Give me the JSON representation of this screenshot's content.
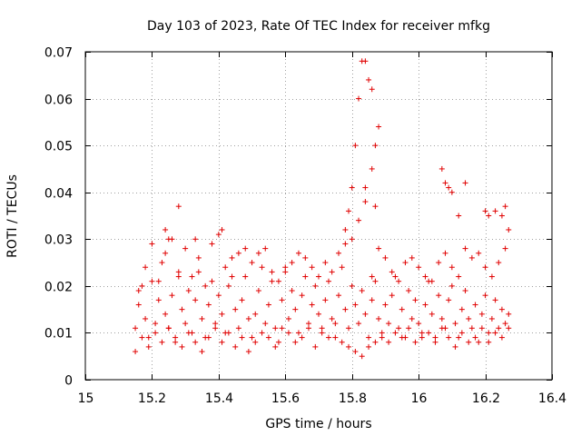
{
  "chart_data": {
    "type": "scatter",
    "title": "Day 103 of 2023, Rate Of TEC Index for receiver mfkg",
    "xlabel": "GPS time / hours",
    "ylabel": "ROTI / TECUs",
    "xlim": [
      15,
      16.4
    ],
    "ylim": [
      0,
      0.07
    ],
    "xticks": [
      15,
      15.2,
      15.4,
      15.6,
      15.8,
      16,
      16.2,
      16.4
    ],
    "xtick_labels": [
      "15",
      "15.2",
      "15.4",
      "15.6",
      "15.8",
      "16",
      "16.2",
      "16.4"
    ],
    "yticks": [
      0,
      0.01,
      0.02,
      0.03,
      0.04,
      0.05,
      0.06,
      0.07
    ],
    "ytick_labels": [
      "0",
      "0.01",
      "0.02",
      "0.03",
      "0.04",
      "0.05",
      "0.06",
      "0.07"
    ],
    "grid": true,
    "marker_color": "#e00000",
    "series": [
      {
        "x": [
          15.15,
          15.16,
          15.17,
          15.18,
          15.19,
          15.2,
          15.21,
          15.22,
          15.23,
          15.24,
          15.25,
          15.26,
          15.27,
          15.28,
          15.29,
          15.3,
          15.31,
          15.32,
          15.33,
          15.34,
          15.35,
          15.36,
          15.37,
          15.38,
          15.39,
          15.4,
          15.41,
          15.42,
          15.43,
          15.44,
          15.45,
          15.46,
          15.47,
          15.48,
          15.49,
          15.5,
          15.51,
          15.52,
          15.53,
          15.54,
          15.55,
          15.56,
          15.57,
          15.58,
          15.59,
          15.6,
          15.61,
          15.62,
          15.63,
          15.64,
          15.65,
          15.66,
          15.67,
          15.68,
          15.69,
          15.7,
          15.71,
          15.72,
          15.73,
          15.74,
          15.75,
          15.76,
          15.77,
          15.78,
          15.79,
          15.8,
          15.81,
          15.82,
          15.83,
          15.84,
          15.85,
          15.86,
          15.87,
          15.88,
          15.89,
          15.9,
          15.91,
          15.92,
          15.93,
          15.94,
          15.95,
          15.96,
          15.97,
          15.98,
          15.99,
          16.0,
          16.01,
          16.02,
          16.03,
          16.04,
          16.05,
          16.06,
          16.07,
          16.08,
          16.09,
          16.1,
          16.11,
          16.12,
          16.13,
          16.14,
          16.15,
          16.16,
          16.17,
          16.18,
          16.19,
          16.2,
          16.21,
          16.22,
          16.23,
          16.24,
          16.25,
          16.26,
          16.27,
          15.15,
          15.17,
          15.19,
          15.21,
          15.23,
          15.25,
          15.27,
          15.29,
          15.31,
          15.33,
          15.35,
          15.37,
          15.39,
          15.41,
          15.43,
          15.45,
          15.47,
          15.49,
          15.51,
          15.53,
          15.55,
          15.57,
          15.59,
          15.61,
          15.63,
          15.65,
          15.67,
          15.69,
          15.71,
          15.73,
          15.75,
          15.77,
          15.79,
          15.81,
          15.83,
          15.85,
          15.87,
          15.89,
          15.91,
          15.93,
          15.95,
          15.97,
          15.99,
          16.01,
          16.03,
          16.05,
          16.07,
          16.09,
          16.11,
          16.13,
          16.15,
          16.17,
          16.19,
          16.21,
          16.23,
          16.25,
          16.27,
          15.16,
          15.18,
          15.2,
          15.22,
          15.24,
          15.26,
          15.28,
          15.3,
          15.32,
          15.34,
          15.36,
          15.38,
          15.4,
          15.42,
          15.44,
          15.46,
          15.48,
          15.5,
          15.52,
          15.54,
          15.56,
          15.58,
          15.6,
          15.62,
          15.64,
          15.66,
          15.68,
          15.7,
          15.72,
          15.74,
          15.76,
          15.78,
          15.8,
          15.82,
          15.84,
          15.86,
          15.88,
          15.9,
          15.92,
          15.94,
          15.96,
          15.98,
          16.0,
          16.02,
          16.04,
          16.06,
          16.08,
          16.1,
          16.12,
          16.14,
          16.16,
          16.18,
          16.2,
          16.22,
          16.24,
          16.26,
          15.82,
          15.83,
          15.84,
          15.85,
          15.86,
          15.87,
          15.88,
          15.81,
          15.8,
          15.79,
          15.78,
          15.86,
          15.84,
          15.87,
          16.07,
          16.08,
          16.09,
          16.1,
          16.12,
          16.14,
          16.2,
          16.21,
          16.23,
          16.25,
          16.26,
          16.27,
          15.28,
          15.24,
          15.41,
          15.25,
          15.33
        ],
        "y": [
          0.011,
          0.016,
          0.02,
          0.013,
          0.009,
          0.021,
          0.012,
          0.017,
          0.025,
          0.014,
          0.011,
          0.018,
          0.008,
          0.022,
          0.015,
          0.012,
          0.019,
          0.01,
          0.017,
          0.023,
          0.013,
          0.009,
          0.016,
          0.021,
          0.012,
          0.018,
          0.014,
          0.01,
          0.02,
          0.026,
          0.015,
          0.011,
          0.017,
          0.022,
          0.013,
          0.009,
          0.014,
          0.019,
          0.024,
          0.012,
          0.016,
          0.021,
          0.011,
          0.008,
          0.017,
          0.023,
          0.013,
          0.019,
          0.015,
          0.01,
          0.018,
          0.022,
          0.012,
          0.016,
          0.02,
          0.014,
          0.011,
          0.017,
          0.021,
          0.013,
          0.009,
          0.018,
          0.024,
          0.015,
          0.011,
          0.02,
          0.016,
          0.012,
          0.019,
          0.014,
          0.009,
          0.017,
          0.021,
          0.013,
          0.01,
          0.016,
          0.012,
          0.018,
          0.022,
          0.011,
          0.015,
          0.009,
          0.019,
          0.013,
          0.017,
          0.012,
          0.01,
          0.016,
          0.021,
          0.014,
          0.009,
          0.018,
          0.013,
          0.011,
          0.017,
          0.02,
          0.012,
          0.009,
          0.015,
          0.019,
          0.013,
          0.011,
          0.016,
          0.008,
          0.014,
          0.018,
          0.01,
          0.013,
          0.017,
          0.011,
          0.015,
          0.012,
          0.014,
          0.006,
          0.009,
          0.007,
          0.01,
          0.008,
          0.011,
          0.009,
          0.007,
          0.01,
          0.008,
          0.006,
          0.009,
          0.011,
          0.008,
          0.01,
          0.007,
          0.009,
          0.006,
          0.008,
          0.01,
          0.009,
          0.007,
          0.011,
          0.01,
          0.008,
          0.009,
          0.011,
          0.007,
          0.01,
          0.009,
          0.012,
          0.008,
          0.007,
          0.006,
          0.005,
          0.007,
          0.008,
          0.009,
          0.008,
          0.01,
          0.009,
          0.011,
          0.008,
          0.009,
          0.01,
          0.008,
          0.011,
          0.009,
          0.007,
          0.01,
          0.008,
          0.009,
          0.011,
          0.008,
          0.01,
          0.009,
          0.011,
          0.019,
          0.024,
          0.029,
          0.021,
          0.027,
          0.03,
          0.023,
          0.028,
          0.022,
          0.026,
          0.02,
          0.029,
          0.031,
          0.024,
          0.022,
          0.027,
          0.028,
          0.025,
          0.027,
          0.028,
          0.023,
          0.021,
          0.024,
          0.025,
          0.027,
          0.026,
          0.024,
          0.022,
          0.025,
          0.023,
          0.027,
          0.029,
          0.03,
          0.034,
          0.038,
          0.022,
          0.028,
          0.026,
          0.023,
          0.021,
          0.025,
          0.026,
          0.024,
          0.022,
          0.021,
          0.025,
          0.027,
          0.024,
          0.022,
          0.028,
          0.026,
          0.027,
          0.024,
          0.022,
          0.025,
          0.028,
          0.06,
          0.068,
          0.068,
          0.064,
          0.062,
          0.05,
          0.054,
          0.05,
          0.041,
          0.036,
          0.032,
          0.045,
          0.041,
          0.037,
          0.045,
          0.042,
          0.041,
          0.04,
          0.035,
          0.042,
          0.036,
          0.035,
          0.036,
          0.035,
          0.037,
          0.032,
          0.037,
          0.032,
          0.032,
          0.03,
          0.03
        ]
      }
    ]
  }
}
